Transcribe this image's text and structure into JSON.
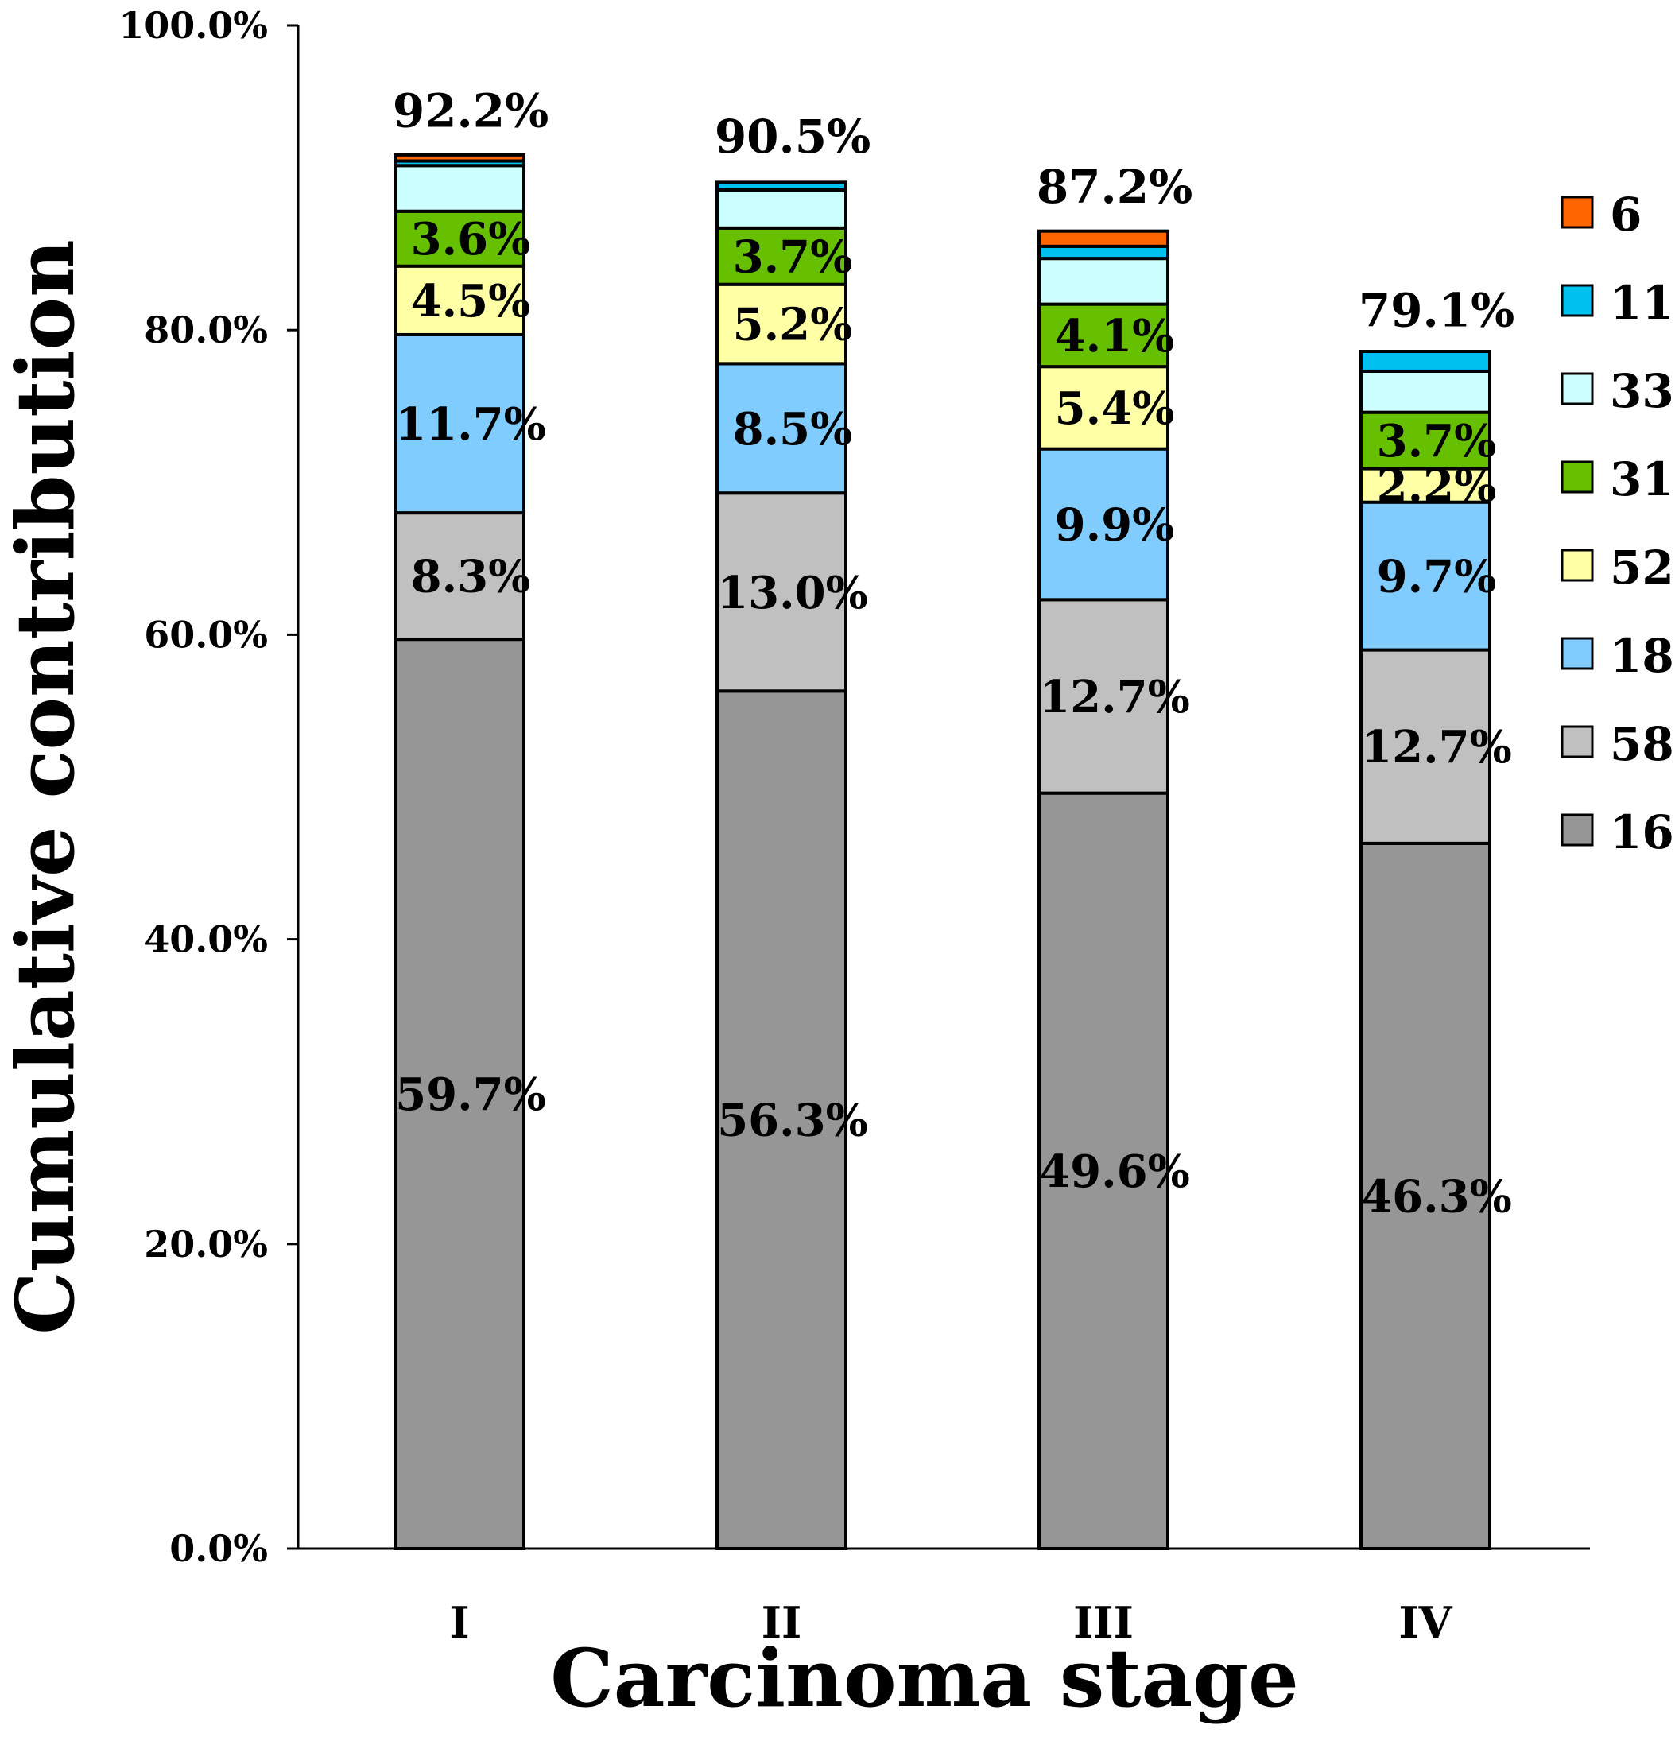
{
  "chart_data": {
    "type": "bar",
    "stacked": true,
    "xlabel": "Carcinoma stage",
    "ylabel": "Cumulative contribution",
    "ylim": [
      0,
      100
    ],
    "yticks": [
      "0.0%",
      "20.0%",
      "40.0%",
      "60.0%",
      "80.0%",
      "100.0%"
    ],
    "categories": [
      "I",
      "II",
      "III",
      "IV"
    ],
    "totals": [
      92.2,
      90.5,
      87.2,
      79.1
    ],
    "total_labels": [
      "92.2%",
      "90.5%",
      "87.2%",
      "79.1%"
    ],
    "series": [
      {
        "name": "16",
        "color": "#969696",
        "values": [
          59.7,
          56.3,
          49.6,
          46.3
        ],
        "labels": [
          "59.7%",
          "56.3%",
          "49.6%",
          "46.3%"
        ]
      },
      {
        "name": "58",
        "color": "#c0c0c0",
        "values": [
          8.3,
          13.0,
          12.7,
          12.7
        ],
        "labels": [
          "8.3%",
          "13.0%",
          "12.7%",
          "12.7%"
        ]
      },
      {
        "name": "18",
        "color": "#80ccff",
        "values": [
          11.7,
          8.5,
          9.9,
          9.7
        ],
        "labels": [
          "11.7%",
          "8.5%",
          "9.9%",
          "9.7%"
        ]
      },
      {
        "name": "52",
        "color": "#ffffa6",
        "values": [
          4.5,
          5.2,
          5.4,
          2.2
        ],
        "labels": [
          "4.5%",
          "5.2%",
          "5.4%",
          "2.2%"
        ]
      },
      {
        "name": "31",
        "color": "#66c000",
        "values": [
          3.6,
          3.7,
          4.1,
          3.7
        ],
        "labels": [
          "3.6%",
          "3.7%",
          "4.1%",
          "3.7%"
        ]
      },
      {
        "name": "33",
        "color": "#ccffff",
        "values": [
          3.0,
          2.5,
          3.0,
          2.7
        ],
        "labels": [
          "",
          "",
          "",
          ""
        ]
      },
      {
        "name": "11",
        "color": "#00c0f0",
        "values": [
          0.3,
          0.5,
          0.8,
          1.3
        ],
        "labels": [
          "",
          "",
          "",
          ""
        ]
      },
      {
        "name": "6",
        "color": "#ff6600",
        "values": [
          0.4,
          0.0,
          1.0,
          0.0
        ],
        "labels": [
          "",
          "",
          "",
          ""
        ]
      }
    ],
    "legend_order": [
      "6",
      "11",
      "33",
      "31",
      "52",
      "18",
      "58",
      "16"
    ],
    "legend_position": "right"
  }
}
